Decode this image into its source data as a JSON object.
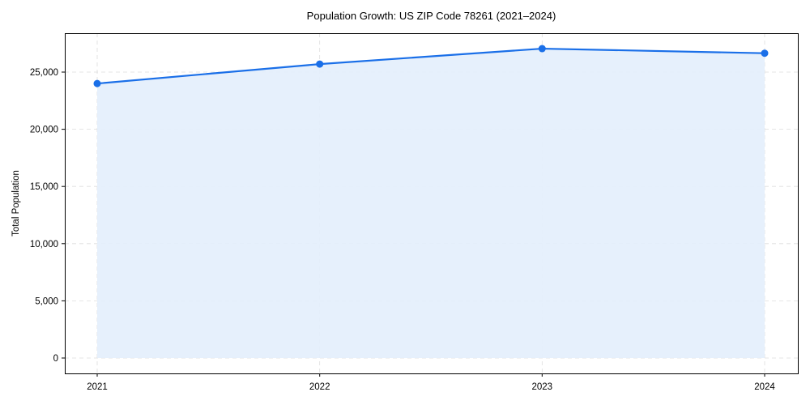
{
  "chart_data": {
    "type": "area",
    "title": "Population Growth: US ZIP Code 78261 (2021–2024)",
    "xlabel": "",
    "ylabel": "Total Population",
    "categories": [
      "2021",
      "2022",
      "2023",
      "2024"
    ],
    "series": [
      {
        "name": "Total Population",
        "values": [
          24000,
          25700,
          27050,
          26650
        ]
      }
    ],
    "yticks": [
      0,
      5000,
      10000,
      15000,
      20000,
      25000
    ],
    "ytick_labels": [
      "0",
      "5,000",
      "10,000",
      "15,000",
      "20,000",
      "25,000"
    ],
    "ylim": [
      -1350,
      28400
    ],
    "grid": true,
    "legend": null
  },
  "colors": {
    "line": "#1a6fe8",
    "fill": "#e3eefc",
    "grid": "#dddddd",
    "axis": "#000000"
  }
}
